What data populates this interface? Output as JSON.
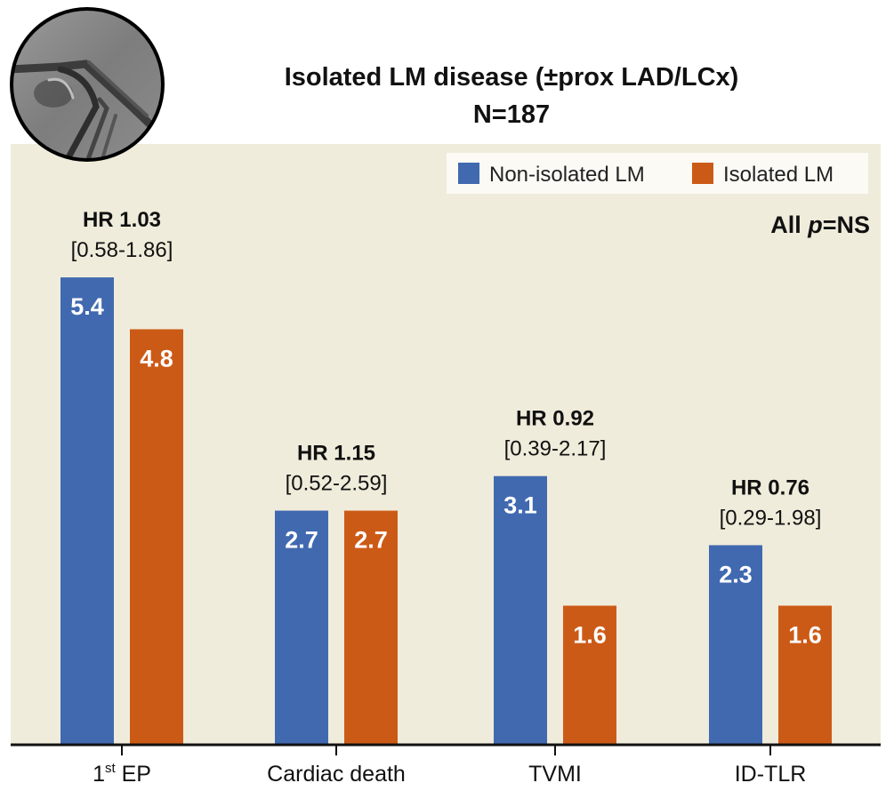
{
  "chart_data": {
    "type": "bar",
    "title": "Isolated LM disease (±prox LAD/LCx)",
    "subtitle": "N=187",
    "xlabel": "",
    "ylabel": "",
    "ylim": [
      0,
      5.5
    ],
    "grid": false,
    "legend_position": "top-right",
    "annotation": {
      "prefix": "All ",
      "italic": "p",
      "suffix": "=NS"
    },
    "categories": [
      {
        "base": "1",
        "sup": "st",
        "rest": " EP"
      },
      {
        "base": "Cardiac death",
        "sup": "",
        "rest": ""
      },
      {
        "base": "TVMI",
        "sup": "",
        "rest": ""
      },
      {
        "base": "ID-TLR",
        "sup": "",
        "rest": ""
      }
    ],
    "series": [
      {
        "name": "Non-isolated LM",
        "color": "#4169b0",
        "values": [
          5.4,
          2.7,
          3.1,
          2.3
        ],
        "labels": [
          "5.4",
          "2.7",
          "3.1",
          "2.3"
        ]
      },
      {
        "name": "Isolated LM",
        "color": "#cc5a17",
        "values": [
          4.8,
          2.7,
          1.6,
          1.6
        ],
        "labels": [
          "4.8",
          "2.7",
          "1.6",
          "1.6"
        ]
      }
    ],
    "hazard_ratios": [
      {
        "hr": "HR 1.03",
        "ci": "[0.58-1.86]"
      },
      {
        "hr": "HR 1.15",
        "ci": "[0.52-2.59]"
      },
      {
        "hr": "HR 0.92",
        "ci": "[0.39-2.17]"
      },
      {
        "hr": "HR 0.76",
        "ci": "[0.29-1.98]"
      }
    ]
  },
  "colors": {
    "panel_background": "#f0ecdb",
    "legend_background": "#fbfaf5",
    "axis": "#111111"
  },
  "thumbnail": {
    "icon": "angiography-image-icon",
    "description": "Coronary angiogram thumbnail"
  }
}
